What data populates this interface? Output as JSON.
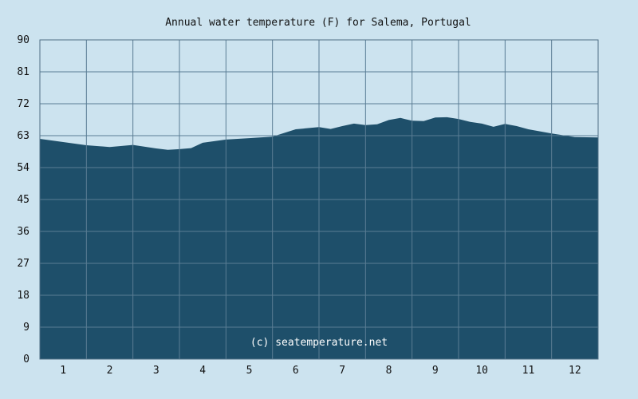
{
  "chart_data": {
    "type": "area",
    "title": "Annual water temperature (F) for Salema, Portugal",
    "xlabel": "",
    "ylabel": "",
    "ylim": [
      0,
      90
    ],
    "yticks": [
      "0",
      "9",
      "18",
      "27",
      "36",
      "45",
      "54",
      "63",
      "72",
      "81",
      "90"
    ],
    "xlim": [
      0.5,
      12.5
    ],
    "xticks": [
      "1",
      "2",
      "3",
      "4",
      "5",
      "6",
      "7",
      "8",
      "9",
      "10",
      "11",
      "12"
    ],
    "grid": true,
    "legend": "none",
    "x": [
      0.5,
      1.0,
      1.5,
      2.0,
      2.5,
      3.0,
      3.25,
      3.5,
      3.75,
      4.0,
      4.5,
      5.0,
      5.5,
      6.0,
      6.5,
      6.75,
      7.0,
      7.25,
      7.5,
      7.75,
      8.0,
      8.25,
      8.5,
      8.75,
      9.0,
      9.25,
      9.5,
      9.75,
      10.0,
      10.25,
      10.5,
      10.75,
      11.0,
      11.5,
      12.0,
      12.5
    ],
    "series": [
      {
        "values": [
          62.1,
          61.2,
          60.3,
          59.8,
          60.4,
          59.4,
          59.0,
          59.2,
          59.5,
          61.0,
          61.9,
          62.3,
          62.7,
          64.8,
          65.4,
          64.9,
          65.7,
          66.4,
          66.0,
          66.2,
          67.4,
          68.0,
          67.2,
          67.1,
          68.1,
          68.2,
          67.7,
          66.9,
          66.4,
          65.5,
          66.3,
          65.7,
          64.8,
          63.6,
          62.6,
          62.5
        ],
        "color": "#1e4f6a"
      }
    ],
    "watermark": "(c) seatemperature.net"
  },
  "colors": {
    "background": "#cce3ef",
    "fill": "#1e4f6a",
    "grid": "#5a7d94",
    "text": "#111111"
  }
}
